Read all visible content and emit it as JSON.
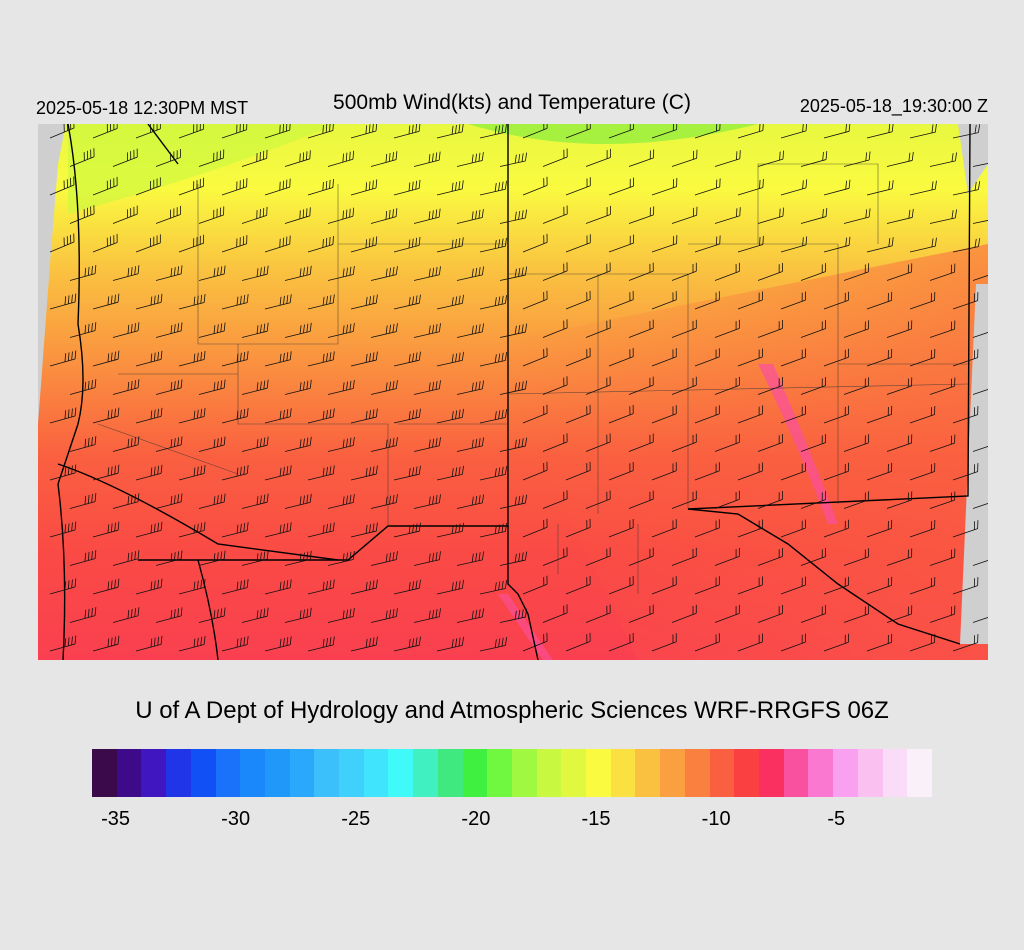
{
  "header": {
    "local_time": "2025-05-18 12:30PM MST",
    "title": "500mb Wind(kts) and Temperature (C)",
    "valid_time": "2025-05-18_19:30:00 Z"
  },
  "credit": "U of A Dept of Hydrology and Atmospheric Sciences WRF-RRGFS 06Z",
  "colorbar": {
    "colors": [
      "#3a0a4a",
      "#3d0a8a",
      "#3f16c0",
      "#2035e8",
      "#1050f5",
      "#1a72fa",
      "#1a88fa",
      "#2098fa",
      "#2aa8fb",
      "#3cc0fc",
      "#40d0fc",
      "#40e4fc",
      "#40fafa",
      "#40f0c0",
      "#40e880",
      "#40f040",
      "#70f840",
      "#a0f840",
      "#c8f840",
      "#e0f840",
      "#fafa40",
      "#fae040",
      "#fac040",
      "#faa040",
      "#fa8040",
      "#fa6040",
      "#fa4040",
      "#fa3060",
      "#fa50a0",
      "#fa78d0",
      "#faa0f0",
      "#fac0f0",
      "#fadcf8",
      "#faf0fa"
    ],
    "tick_labels": [
      "-35",
      "-30",
      "-25",
      "-20",
      "-15",
      "-10",
      "-5"
    ]
  },
  "map": {
    "field": "500mb temperature (C) with wind barbs (kts)",
    "temperature_range": [
      -35,
      -2
    ]
  }
}
